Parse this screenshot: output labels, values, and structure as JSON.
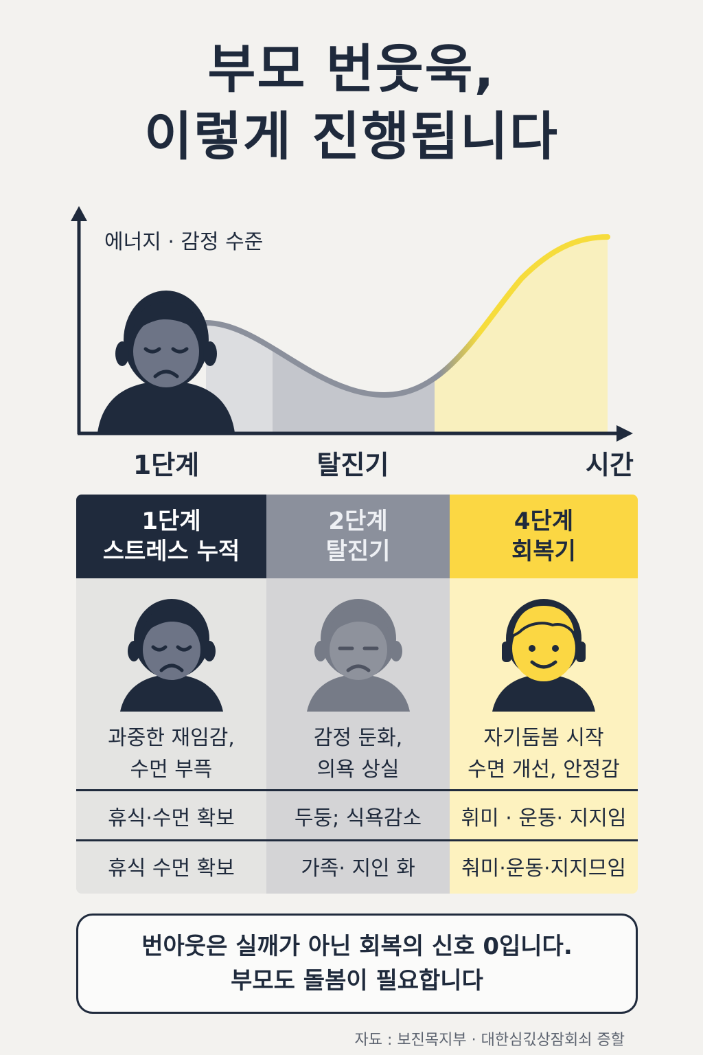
{
  "title": {
    "line1": "부모 번웃욱,",
    "line2": "이렇게 진행됩니다"
  },
  "chart": {
    "y_axis_label": "에너지 · 감정 수준",
    "stage_labels": [
      "1단계",
      "탈진기",
      "시간"
    ],
    "colors": {
      "dark": "#1f2a3c",
      "gray": "#8b909c",
      "yellow": "#f6dc3c"
    }
  },
  "stages": [
    {
      "head_line1": "1단계",
      "head_line2": "스트레스 누적",
      "desc_line1": "과중한 재임감,",
      "desc_line2": "수먼 부픅",
      "row1": "휴식·수먼 확보",
      "row2": "휴식 수먼 확보",
      "face": "sad-face-icon"
    },
    {
      "head_line1": "2단계",
      "head_line2": "탈진기",
      "desc_line1": "감정 둔화,",
      "desc_line2": "의욕 상실",
      "row1": "두둥; 식욕감소",
      "row2": "가족· 지인 화",
      "face": "tired-face-icon"
    },
    {
      "head_line1": "4단계",
      "head_line2": "회복기",
      "desc_line1": "자기둠봄 시작",
      "desc_line2": "수면 개선, 안정감",
      "row1": "휘미 · 운동· 지지임",
      "row2": "춰미·운동·지지므임",
      "face": "smiling-face-icon"
    }
  ],
  "callout": {
    "line1": "번아웃은 실깨가 아닌 회복의 신호 0입니다.",
    "line2": "부모도 돌봄이 필요합니다"
  },
  "source": "자됴 : 보진목지부 · 대한심긳상잠회쇠 증할"
}
